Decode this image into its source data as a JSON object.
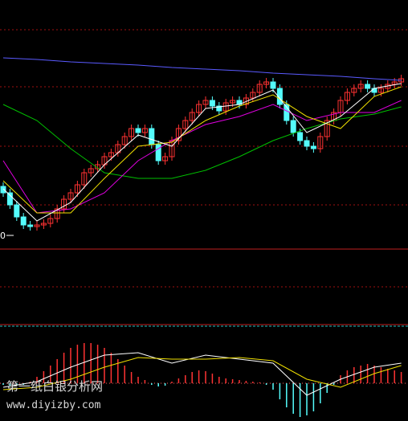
{
  "chart_data": [
    {
      "type": "candlestick",
      "up_color": "#ff3232",
      "down_color": "#54fcfc",
      "ylim": [
        0,
        310
      ],
      "annotation": "0",
      "open": [
        78,
        70,
        55,
        40,
        30,
        28,
        30,
        32,
        38,
        50,
        62,
        70,
        80,
        95,
        100,
        105,
        115,
        120,
        130,
        140,
        150,
        145,
        150,
        130,
        110,
        115,
        135,
        150,
        160,
        170,
        180,
        185,
        178,
        172,
        182,
        185,
        180,
        188,
        195,
        205,
        208,
        200,
        180,
        160,
        145,
        135,
        128,
        125,
        140,
        160,
        170,
        185,
        195,
        200,
        205,
        200,
        195,
        200,
        205,
        208
      ],
      "close": [
        70,
        55,
        40,
        30,
        28,
        30,
        32,
        38,
        50,
        62,
        70,
        80,
        95,
        100,
        105,
        115,
        120,
        130,
        140,
        150,
        145,
        150,
        130,
        110,
        115,
        135,
        150,
        160,
        170,
        180,
        185,
        178,
        172,
        182,
        185,
        180,
        188,
        195,
        205,
        208,
        200,
        180,
        160,
        145,
        135,
        128,
        125,
        140,
        160,
        170,
        185,
        195,
        200,
        205,
        200,
        195,
        200,
        205,
        208,
        212
      ],
      "high": [
        83,
        75,
        60,
        45,
        35,
        35,
        37,
        43,
        55,
        67,
        75,
        85,
        100,
        105,
        110,
        120,
        125,
        135,
        145,
        155,
        155,
        155,
        155,
        135,
        120,
        140,
        155,
        165,
        175,
        185,
        190,
        190,
        183,
        187,
        190,
        190,
        193,
        200,
        210,
        213,
        213,
        205,
        185,
        165,
        150,
        140,
        133,
        145,
        165,
        175,
        190,
        200,
        205,
        210,
        210,
        205,
        205,
        210,
        213,
        217
      ],
      "low": [
        65,
        50,
        35,
        25,
        23,
        23,
        25,
        27,
        33,
        45,
        57,
        65,
        75,
        90,
        95,
        100,
        110,
        115,
        125,
        135,
        140,
        140,
        125,
        105,
        105,
        110,
        130,
        145,
        155,
        165,
        175,
        173,
        167,
        167,
        177,
        175,
        175,
        183,
        190,
        200,
        195,
        175,
        155,
        140,
        130,
        123,
        120,
        120,
        135,
        155,
        165,
        180,
        190,
        195,
        195,
        190,
        190,
        195,
        200,
        203
      ],
      "lines": [
        {
          "color": "#5a5aff",
          "x": [
            0,
            5,
            10,
            15,
            20,
            25,
            30,
            35,
            40,
            45,
            50,
            55,
            59
          ],
          "values": [
            238,
            236,
            233,
            231,
            229,
            226,
            224,
            222,
            219,
            217,
            215,
            212,
            210
          ]
        },
        {
          "color": "#00c000",
          "x": [
            0,
            5,
            10,
            15,
            20,
            25,
            30,
            35,
            40,
            45,
            50,
            55,
            59
          ],
          "values": [
            180,
            160,
            125,
            95,
            88,
            88,
            98,
            115,
            135,
            150,
            162,
            168,
            177
          ]
        },
        {
          "color": "#e000e0",
          "x": [
            0,
            5,
            10,
            15,
            20,
            25,
            30,
            35,
            40,
            45,
            50,
            55,
            59
          ],
          "values": [
            110,
            45,
            50,
            70,
            110,
            135,
            155,
            165,
            180,
            160,
            170,
            170,
            185
          ]
        },
        {
          "color": "#f0e000",
          "x": [
            0,
            5,
            10,
            15,
            20,
            25,
            30,
            35,
            40,
            45,
            50,
            55,
            59
          ],
          "values": [
            85,
            45,
            45,
            88,
            128,
            133,
            160,
            178,
            192,
            165,
            150,
            190,
            202
          ]
        },
        {
          "color": "#ffffff",
          "x": [
            0,
            5,
            10,
            15,
            20,
            25,
            30,
            35,
            40,
            45,
            50,
            55,
            59
          ],
          "values": [
            75,
            35,
            58,
            105,
            142,
            128,
            175,
            180,
            198,
            145,
            165,
            200,
            206
          ]
        }
      ]
    },
    {
      "type": "macd",
      "up_color": "#ff3232",
      "down_color": "#54fcfc",
      "ylim": [
        -47,
        72
      ],
      "values": [
        -2,
        -3,
        -3,
        -2,
        2,
        8,
        15,
        22,
        30,
        38,
        44,
        48,
        50,
        50,
        48,
        44,
        38,
        30,
        22,
        14,
        8,
        4,
        -2,
        -4,
        -3,
        2,
        6,
        10,
        14,
        16,
        15,
        12,
        8,
        6,
        5,
        4,
        3,
        2,
        1,
        -2,
        -8,
        -20,
        -30,
        -38,
        -42,
        -40,
        -35,
        -25,
        -12,
        -2,
        10,
        16,
        20,
        22,
        24,
        22,
        20,
        18,
        16,
        14
      ],
      "lines": [
        {
          "color": "#ffffff",
          "x": [
            0,
            5,
            10,
            15,
            20,
            25,
            30,
            35,
            40,
            45,
            50,
            55,
            59
          ],
          "values": [
            -5,
            2,
            20,
            35,
            38,
            25,
            35,
            30,
            25,
            -15,
            5,
            20,
            25
          ]
        },
        {
          "color": "#f0e000",
          "x": [
            0,
            5,
            10,
            15,
            20,
            25,
            30,
            35,
            40,
            45,
            50,
            55,
            59
          ],
          "values": [
            -8,
            -5,
            5,
            20,
            32,
            30,
            30,
            32,
            28,
            5,
            -5,
            12,
            22
          ]
        }
      ]
    }
  ],
  "watermark": [
    "第一纸白银分析网",
    "www.diyizby.com"
  ]
}
